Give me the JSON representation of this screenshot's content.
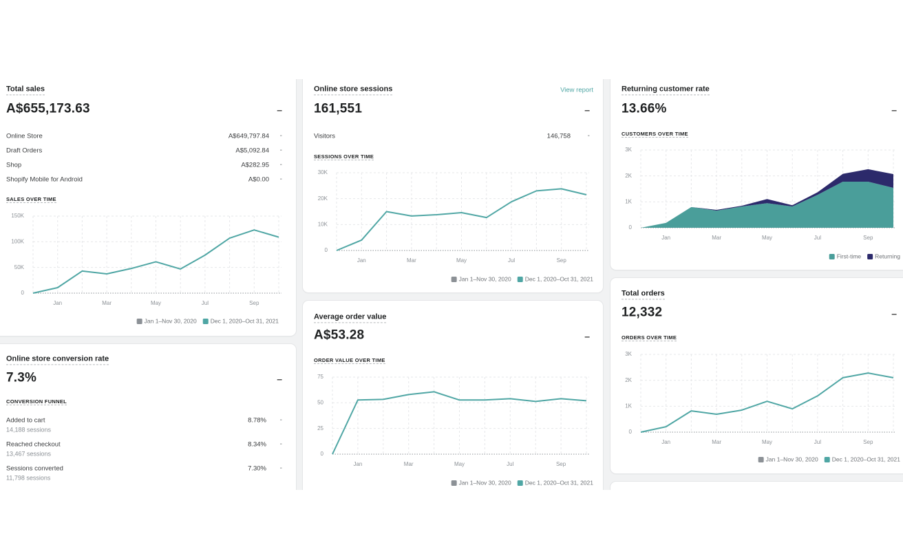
{
  "cards": [
    {
      "title": "Total sales",
      "value": "A$655,173.63",
      "change": "–",
      "rows": [
        {
          "label": "Online Store",
          "value": "A$649,797.84",
          "change": "-"
        },
        {
          "label": "Draft Orders",
          "value": "A$5,092.84",
          "change": "-"
        },
        {
          "label": "Shop",
          "value": "A$282.95",
          "change": "-"
        },
        {
          "label": "Shopify Mobile for Android",
          "value": "A$0.00",
          "change": "-"
        }
      ],
      "chart": {
        "type": "line",
        "title": "SALES OVER TIME",
        "categories": [
          null,
          "Jan",
          null,
          "Mar",
          null,
          "May",
          null,
          "Jul",
          null,
          "Sep",
          null
        ],
        "series": [
          {
            "name": "Jan 1–Nov 30, 2020",
            "color": "#8c9196",
            "values": [
              null,
              null,
              null,
              null,
              null,
              null,
              null,
              null,
              null,
              null,
              null
            ]
          },
          {
            "name": "Dec 1, 2020–Oct 31, 2021",
            "color": "#4fa6a4",
            "values": [
              0,
              10700,
              43000,
              37500,
              48000,
              61000,
              47000,
              74000,
              107000,
              123000,
              109000
            ]
          }
        ],
        "ylim": [
          0,
          150000
        ],
        "yticks": [
          0,
          {
            "value": 50000,
            "label": "50K"
          },
          {
            "value": 100000,
            "label": "100K"
          },
          {
            "value": 150000,
            "label": "150K"
          }
        ]
      }
    },
    {
      "title": "Online store conversion rate",
      "value": "7.3%",
      "change": "–",
      "funnel_title": "CONVERSION FUNNEL",
      "funnel": [
        {
          "label": "Added to cart",
          "sessions": "14,188 sessions",
          "value": "8.78%",
          "change": "-"
        },
        {
          "label": "Reached checkout",
          "sessions": "13,467 sessions",
          "value": "8.34%",
          "change": "-"
        },
        {
          "label": "Sessions converted",
          "sessions": "11,798 sessions",
          "value": "7.30%",
          "change": "-"
        }
      ]
    },
    {
      "title": "Online store sessions",
      "link": "View report",
      "value": "161,551",
      "change": "–",
      "rows": [
        {
          "label": "Visitors",
          "value": "146,758",
          "change": "-"
        }
      ],
      "chart": {
        "type": "line",
        "title": "SESSIONS OVER TIME",
        "categories": [
          null,
          "Jan",
          null,
          "Mar",
          null,
          "May",
          null,
          "Jul",
          null,
          "Sep",
          null
        ],
        "series": [
          {
            "name": "Jan 1–Nov 30, 2020",
            "color": "#8c9196",
            "values": [
              null,
              null,
              null,
              null,
              null,
              null,
              null,
              null,
              null,
              null,
              null
            ]
          },
          {
            "name": "Dec 1, 2020–Oct 31, 2021",
            "color": "#4fa6a4",
            "values": [
              0,
              4000,
              15000,
              13300,
              13800,
              14600,
              12700,
              18800,
              23000,
              23800,
              21500
            ]
          }
        ],
        "ylim": [
          0,
          30000
        ],
        "yticks": [
          0,
          {
            "value": 10000,
            "label": "10K"
          },
          {
            "value": 20000,
            "label": "20K"
          },
          {
            "value": 30000,
            "label": "30K"
          }
        ]
      }
    },
    {
      "title": "Average order value",
      "value": "A$53.28",
      "change": "–",
      "chart": {
        "type": "line",
        "title": "ORDER VALUE OVER TIME",
        "categories": [
          null,
          "Jan",
          null,
          "Mar",
          null,
          "May",
          null,
          "Jul",
          null,
          "Sep",
          null
        ],
        "series": [
          {
            "name": "Jan 1–Nov 30, 2020",
            "color": "#8c9196",
            "values": [
              null,
              null,
              null,
              null,
              null,
              null,
              null,
              null,
              null,
              null,
              null
            ]
          },
          {
            "name": "Dec 1, 2020–Oct 31, 2021",
            "color": "#4fa6a4",
            "values": [
              0,
              52.7,
              53.3,
              58,
              60.7,
              52.7,
              52.7,
              54,
              51.3,
              54,
              52
            ]
          }
        ],
        "ylim": [
          0,
          75
        ],
        "yticks": [
          0,
          25,
          50,
          75
        ]
      }
    },
    {
      "title": "Returning customer rate",
      "value": "13.66%",
      "change": "–",
      "chart": {
        "type": "stacked-area",
        "title": "CUSTOMERS OVER TIME",
        "categories": [
          null,
          "Jan",
          null,
          "Mar",
          null,
          "May",
          null,
          "Jul",
          null,
          "Sep",
          null
        ],
        "series": [
          {
            "name": "First-time",
            "color": "#4a9e9a",
            "values": [
              0,
              190,
              800,
              660,
              820,
              950,
              820,
              1270,
              1780,
              1780,
              1540
            ]
          },
          {
            "name": "Returning",
            "color": "#2c2a6b",
            "values": [
              0,
              0,
              0,
              30,
              30,
              160,
              50,
              100,
              300,
              480,
              530
            ]
          }
        ],
        "ylim": [
          0,
          3000
        ],
        "yticks": [
          0,
          {
            "value": 1000,
            "label": "1K"
          },
          {
            "value": 2000,
            "label": "2K"
          },
          {
            "value": 3000,
            "label": "3K"
          }
        ]
      }
    },
    {
      "title": "Total orders",
      "value": "12,332",
      "change": "–",
      "chart": {
        "type": "line",
        "title": "ORDERS OVER TIME",
        "categories": [
          null,
          "Jan",
          null,
          "Mar",
          null,
          "May",
          null,
          "Jul",
          null,
          "Sep",
          null
        ],
        "series": [
          {
            "name": "Jan 1–Nov 30, 2020",
            "color": "#8c9196",
            "values": [
              null,
              null,
              null,
              null,
              null,
              null,
              null,
              null,
              null,
              null,
              null
            ]
          },
          {
            "name": "Dec 1, 2020–Oct 31, 2021",
            "color": "#4fa6a4",
            "values": [
              0,
              210,
              820,
              690,
              850,
              1190,
              900,
              1400,
              2100,
              2280,
              2100
            ]
          }
        ],
        "ylim": [
          0,
          3000
        ],
        "yticks": [
          0,
          {
            "value": 1000,
            "label": "1K"
          },
          {
            "value": 2000,
            "label": "2K"
          },
          {
            "value": 3000,
            "label": "3K"
          }
        ]
      }
    }
  ]
}
